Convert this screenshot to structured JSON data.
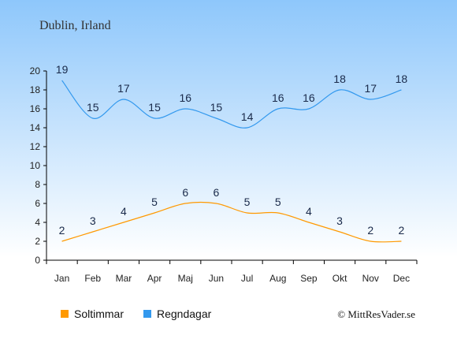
{
  "chart_data": {
    "type": "line",
    "title": "Dublin, Irland",
    "categories": [
      "Jan",
      "Feb",
      "Mar",
      "Apr",
      "Maj",
      "Jun",
      "Jul",
      "Aug",
      "Sep",
      "Okt",
      "Nov",
      "Dec"
    ],
    "ylim": [
      0,
      20
    ],
    "yticks": [
      0,
      2,
      4,
      6,
      8,
      10,
      12,
      14,
      16,
      18,
      20
    ],
    "grid": false,
    "legend_position": "bottom-left",
    "series": [
      {
        "name": "Soltimmar",
        "color": "#ff9900",
        "values": [
          2,
          3,
          4,
          5,
          6,
          6,
          5,
          5,
          4,
          3,
          2,
          2
        ]
      },
      {
        "name": "Regndagar",
        "color": "#3399ee",
        "values": [
          19,
          15,
          17,
          15,
          16,
          15,
          14,
          16,
          16,
          18,
          17,
          18
        ]
      }
    ]
  },
  "credit": "© MittResVader.se",
  "colors": {
    "background_top": "#8ec7fb",
    "background_bottom": "#ffffff",
    "axis": "#000000"
  }
}
